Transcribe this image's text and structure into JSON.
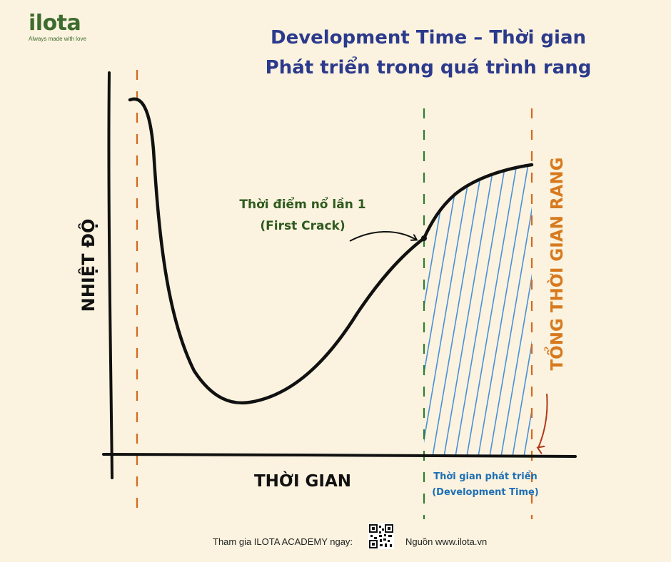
{
  "brand": {
    "logo_text": "ilota",
    "tagline": "Always made with love"
  },
  "title": {
    "line1": "Development Time – Thời gian",
    "line2": "Phát triển trong quá trình rang"
  },
  "diagram": {
    "y_axis_label": "NHIỆT ĐỘ",
    "x_axis_label": "THỜI GIAN",
    "first_crack_label_line1": "Thời điểm nổ lần 1",
    "first_crack_label_line2": "(First Crack)",
    "development_label_line1": "Thời gian phát triển",
    "development_label_line2": "(Development Time)",
    "total_time_label": "TỔNG THỜI GIAN RANG"
  },
  "colors": {
    "background": "#FBF3DF",
    "title": "#2B3A8C",
    "curve": "#111111",
    "marker_start_end": "#D2691E",
    "marker_first_crack": "#2E7D32",
    "hatch": "#4A90D9",
    "first_crack_text": "#2F5A1E",
    "development_text": "#1E6FB5",
    "total_time_text": "#D77A1F",
    "logo": "#3E6B2E"
  },
  "footer": {
    "invite_text": "Tham gia ILOTA ACADEMY ngay:",
    "source_text": "Nguồn www.ilota.vn",
    "qr_icon": "qr-code-icon"
  }
}
